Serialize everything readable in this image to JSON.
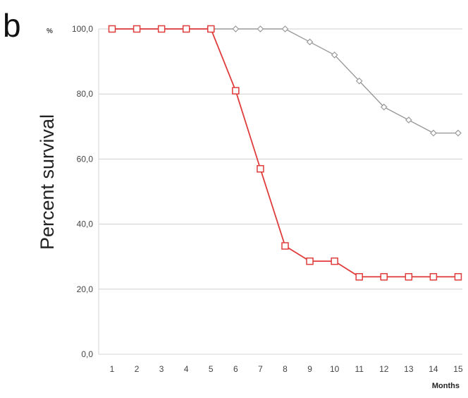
{
  "panel_letter": "b",
  "chart_data": {
    "type": "line",
    "ylabel": "Percent survival",
    "y_unit": "%",
    "xlabel": "Months",
    "x": [
      1,
      2,
      3,
      4,
      5,
      6,
      7,
      8,
      9,
      10,
      11,
      12,
      13,
      14,
      15
    ],
    "ylim": [
      0,
      100
    ],
    "yticks": [
      "0,0",
      "20,0",
      "40,0",
      "60,0",
      "80,0",
      "100,0"
    ],
    "ytick_values": [
      0,
      20,
      40,
      60,
      80,
      100
    ],
    "grid": true,
    "series": [
      {
        "marker": "diamond",
        "color": "#9a9a9a",
        "values": [
          100,
          100,
          100,
          100,
          100,
          100,
          100,
          100,
          96,
          92,
          84,
          76,
          72,
          68,
          68
        ]
      },
      {
        "marker": "square",
        "color": "#e03c3c",
        "values": [
          100,
          100,
          100,
          100,
          100,
          81,
          57,
          33.3,
          28.6,
          28.6,
          23.8,
          23.8,
          23.8,
          23.8,
          23.8
        ]
      }
    ]
  }
}
